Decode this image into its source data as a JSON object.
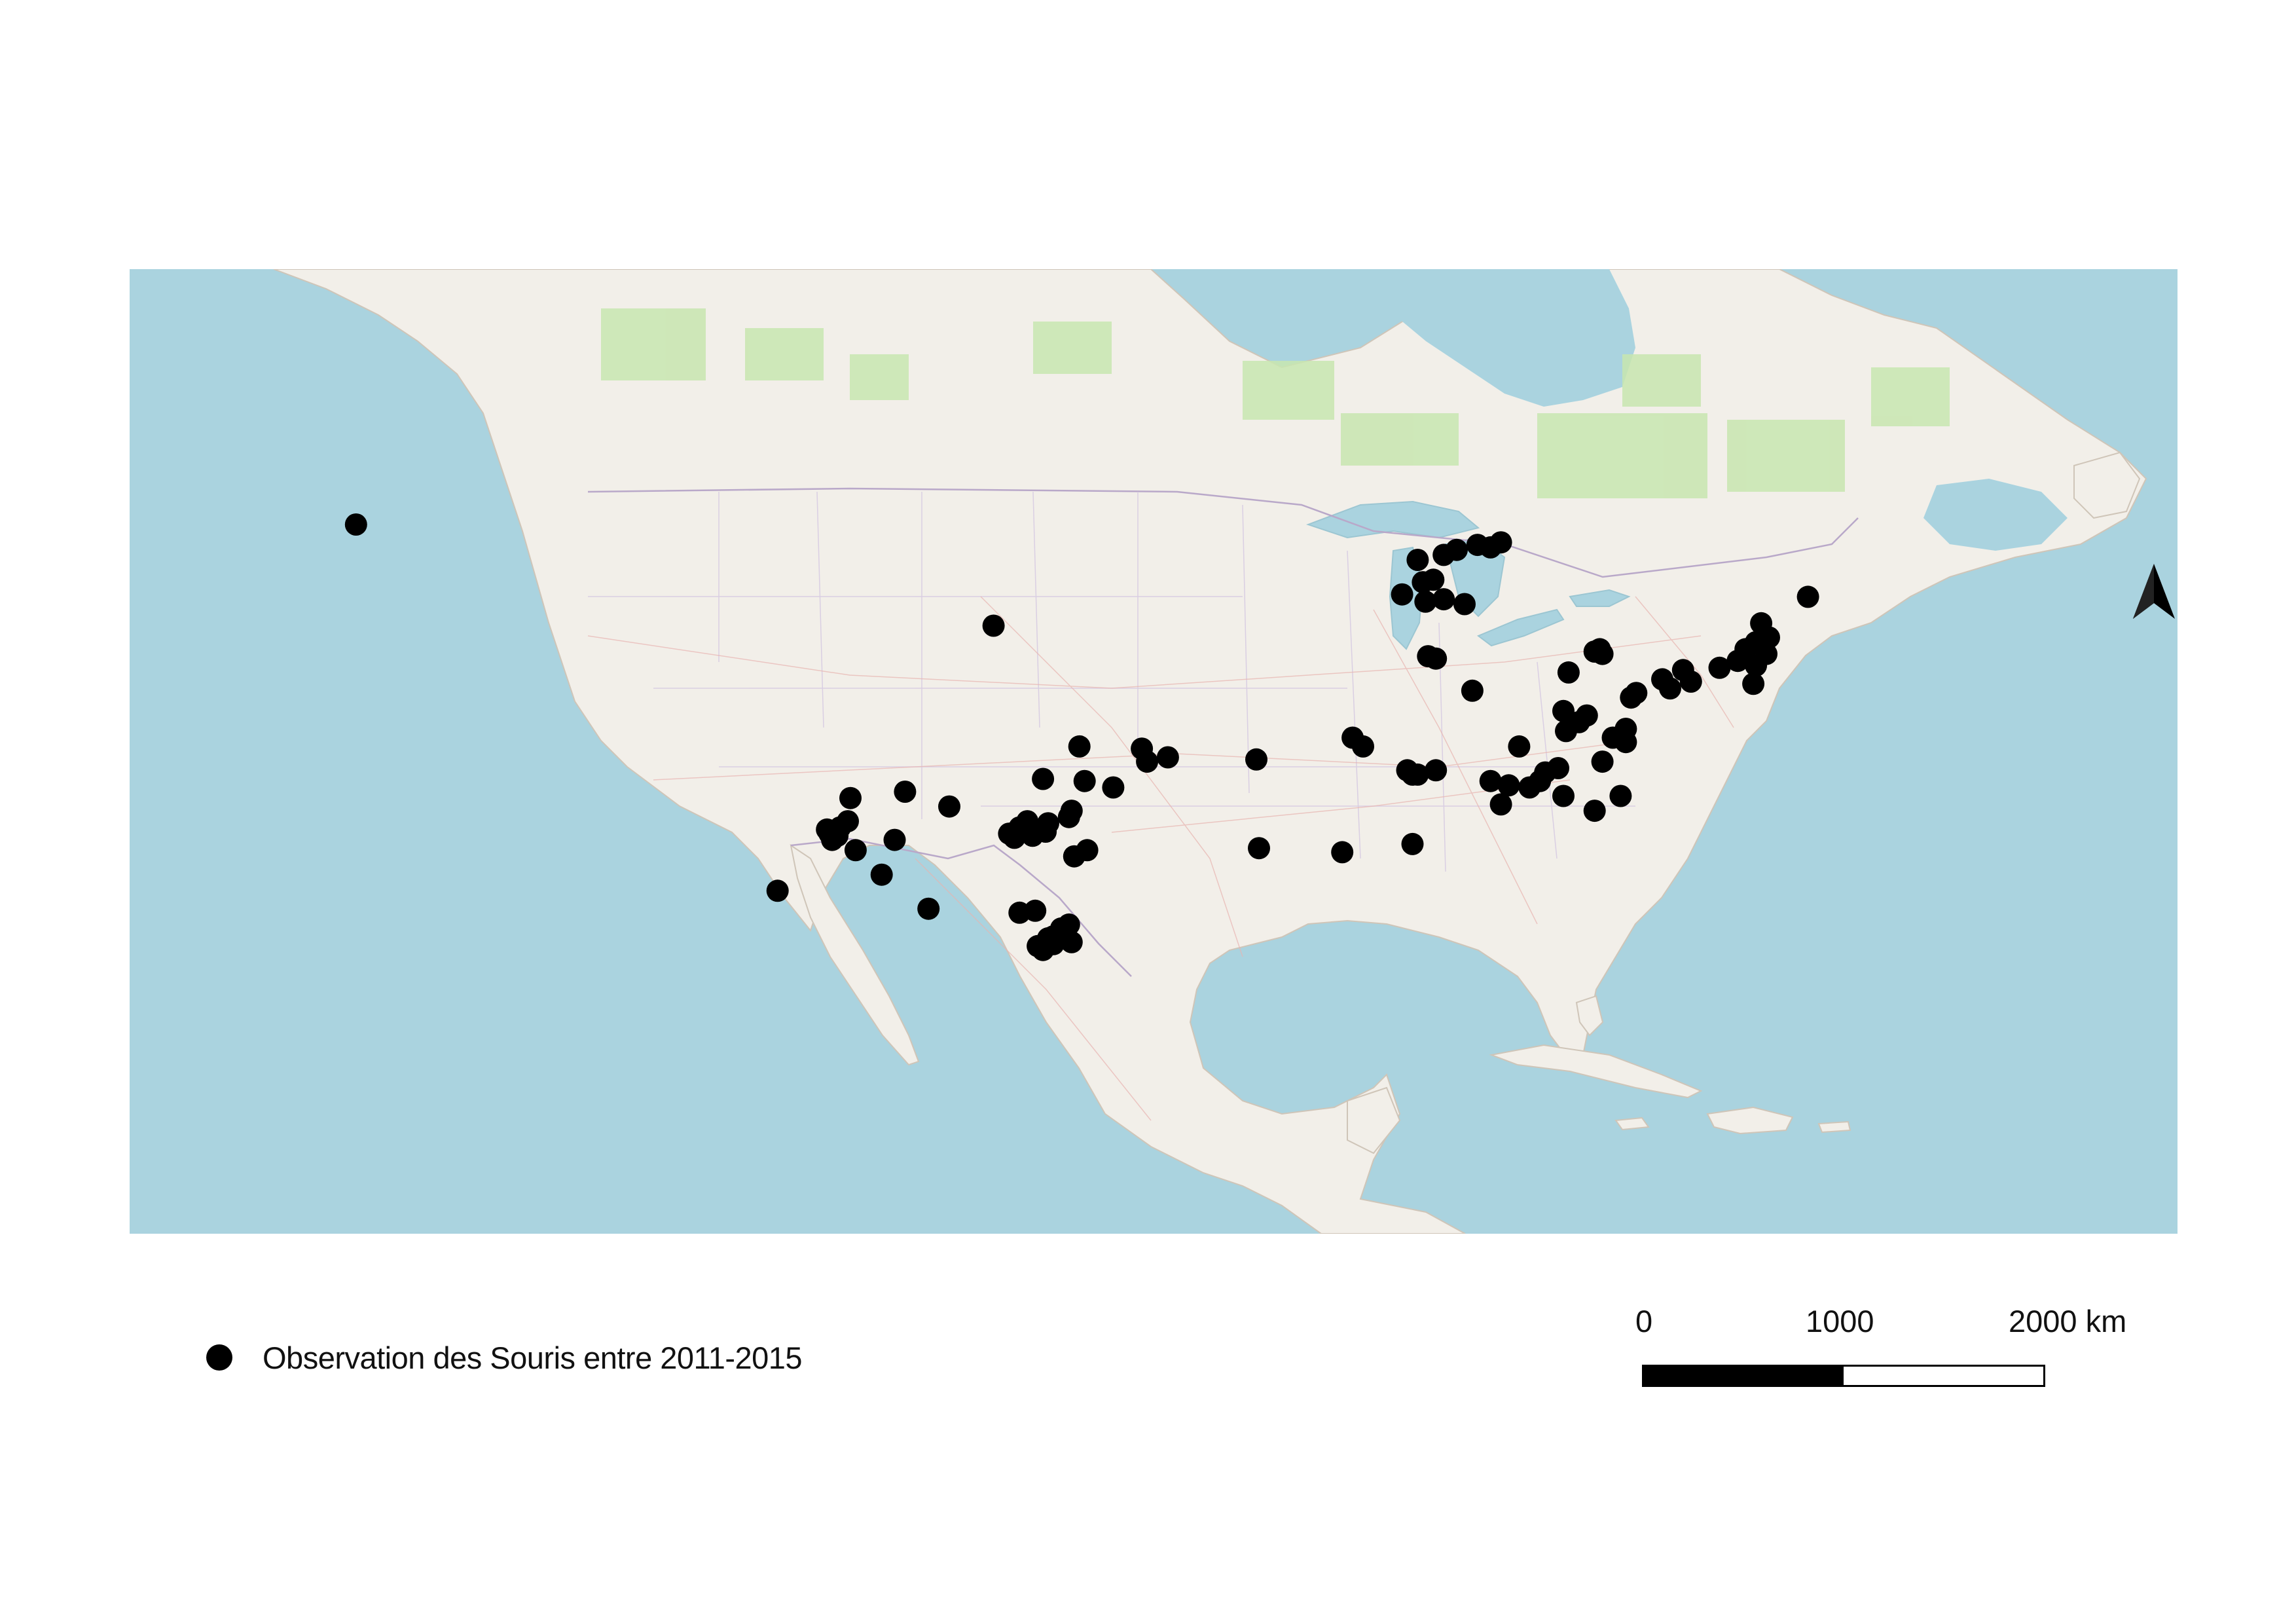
{
  "map": {
    "colors": {
      "water": "#aad3df",
      "land": "#f2efe9",
      "forest": "#c8e6b0",
      "border": "#b9a8c9",
      "road": "#e8b4b0",
      "marker": "#000000"
    },
    "observation_points": [
      [
        -124.8,
        48.6
      ],
      [
        -82.5,
        47.6
      ],
      [
        -81.7,
        47.8
      ],
      [
        -80.8,
        47.9
      ],
      [
        -81.2,
        47.7
      ],
      [
        -83.0,
        47.4
      ],
      [
        -84.0,
        47.2
      ],
      [
        -83.8,
        46.3
      ],
      [
        -83.4,
        46.4
      ],
      [
        -84.6,
        45.8
      ],
      [
        -83.7,
        45.5
      ],
      [
        -83.0,
        45.6
      ],
      [
        -82.2,
        45.4
      ],
      [
        -100.3,
        44.5
      ],
      [
        -83.6,
        43.2
      ],
      [
        -83.3,
        43.1
      ],
      [
        -77.0,
        43.5
      ],
      [
        -77.2,
        43.4
      ],
      [
        -76.9,
        43.3
      ],
      [
        -69.0,
        45.7
      ],
      [
        -70.8,
        44.6
      ],
      [
        -70.5,
        44.0
      ],
      [
        -71.0,
        43.8
      ],
      [
        -71.4,
        43.5
      ],
      [
        -70.6,
        43.3
      ],
      [
        -71.7,
        43.0
      ],
      [
        -71.0,
        42.8
      ],
      [
        -72.4,
        42.7
      ],
      [
        -73.8,
        42.6
      ],
      [
        -74.6,
        42.2
      ],
      [
        -73.5,
        42.1
      ],
      [
        -74.3,
        41.8
      ],
      [
        -71.1,
        42.0
      ],
      [
        -75.6,
        41.6
      ],
      [
        -75.8,
        41.4
      ],
      [
        -78.2,
        42.5
      ],
      [
        -81.9,
        41.7
      ],
      [
        -78.4,
        40.8
      ],
      [
        -77.5,
        40.6
      ],
      [
        -77.8,
        40.3
      ],
      [
        -76.0,
        40.0
      ],
      [
        -76.5,
        39.6
      ],
      [
        -76.0,
        39.4
      ],
      [
        -78.3,
        39.9
      ],
      [
        -80.1,
        39.2
      ],
      [
        -76.9,
        38.5
      ],
      [
        -79.1,
        38.0
      ],
      [
        -78.6,
        38.2
      ],
      [
        -81.2,
        37.6
      ],
      [
        -80.5,
        37.4
      ],
      [
        -79.7,
        37.3
      ],
      [
        -79.3,
        37.6
      ],
      [
        -80.8,
        36.5
      ],
      [
        -76.2,
        36.9
      ],
      [
        -77.2,
        36.2
      ],
      [
        -83.3,
        38.1
      ],
      [
        -84.0,
        37.9
      ],
      [
        -78.4,
        36.9
      ],
      [
        -84.4,
        38.1
      ],
      [
        -84.2,
        37.9
      ],
      [
        -86.1,
        39.2
      ],
      [
        -86.5,
        39.6
      ],
      [
        -90.2,
        38.6
      ],
      [
        -94.6,
        39.1
      ],
      [
        -94.4,
        38.5
      ],
      [
        -93.6,
        38.7
      ],
      [
        -95.7,
        37.3
      ],
      [
        -96.8,
        37.6
      ],
      [
        -98.4,
        37.7
      ],
      [
        -97.0,
        39.2
      ],
      [
        -97.4,
        35.9
      ],
      [
        -97.3,
        36.2
      ],
      [
        -98.2,
        35.6
      ],
      [
        -98.3,
        35.2
      ],
      [
        -99.3,
        35.4
      ],
      [
        -99.7,
        35.1
      ],
      [
        -98.8,
        35.0
      ],
      [
        -99.0,
        35.7
      ],
      [
        -99.5,
        34.9
      ],
      [
        -96.7,
        34.3
      ],
      [
        -97.2,
        34.0
      ],
      [
        -98.7,
        31.3
      ],
      [
        -99.3,
        31.2
      ],
      [
        -97.7,
        30.4
      ],
      [
        -97.4,
        30.6
      ],
      [
        -98.0,
        30.0
      ],
      [
        -98.6,
        29.5
      ],
      [
        -98.4,
        29.3
      ],
      [
        -98.0,
        29.6
      ],
      [
        -98.2,
        29.9
      ],
      [
        -97.3,
        29.7
      ],
      [
        -102.0,
        36.4
      ],
      [
        -103.7,
        37.1
      ],
      [
        -105.8,
        36.8
      ],
      [
        -106.6,
        35.1
      ],
      [
        -106.2,
        35.4
      ],
      [
        -105.9,
        35.7
      ],
      [
        -106.3,
        35.0
      ],
      [
        -106.7,
        35.3
      ],
      [
        -106.5,
        34.8
      ],
      [
        -105.6,
        34.3
      ],
      [
        -104.1,
        34.8
      ],
      [
        -104.6,
        33.1
      ],
      [
        -108.6,
        32.3
      ],
      [
        -102.8,
        31.4
      ],
      [
        -90.1,
        34.4
      ],
      [
        -86.9,
        34.2
      ],
      [
        -84.2,
        34.6
      ]
    ]
  },
  "legend": {
    "label": "Observation des Souris entre 2011-2015"
  },
  "scalebar": {
    "labels": [
      "0",
      "1000",
      "2000 km"
    ]
  },
  "north_arrow": {
    "icon": "north-arrow-icon"
  }
}
